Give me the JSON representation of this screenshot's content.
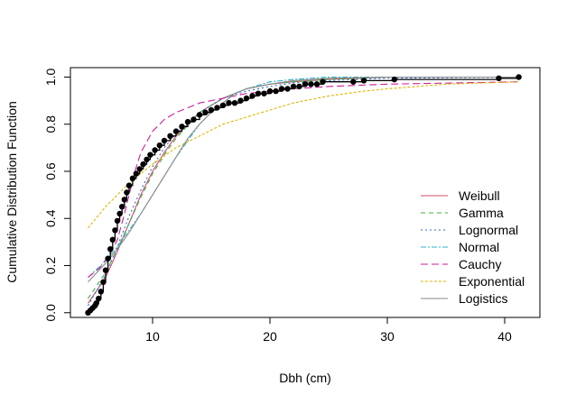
{
  "chart_data": {
    "type": "line",
    "title": "",
    "xlabel": "Dbh (cm)",
    "ylabel": "Cumulative Distribution Function",
    "xlim": [
      3,
      43
    ],
    "ylim": [
      -0.02,
      1.04
    ],
    "xticks": [
      10,
      20,
      30,
      40
    ],
    "yticks": [
      0.0,
      0.2,
      0.4,
      0.6,
      0.8,
      1.0
    ],
    "xtick_labels": [
      "10",
      "20",
      "30",
      "40"
    ],
    "ytick_labels": [
      "0.0",
      "0.2",
      "0.4",
      "0.6",
      "0.8",
      "1.0"
    ],
    "grid": false,
    "legend_position": "bottom-right",
    "empirical": {
      "x": [
        4.5,
        4.7,
        4.9,
        5.1,
        5.2,
        5.4,
        5.6,
        5.8,
        6.0,
        6.2,
        6.4,
        6.6,
        6.8,
        7.0,
        7.2,
        7.4,
        7.6,
        7.8,
        8.0,
        8.3,
        8.6,
        8.9,
        9.2,
        9.5,
        9.8,
        10.2,
        10.6,
        11.0,
        11.5,
        12.0,
        12.5,
        13.0,
        13.5,
        14.0,
        14.5,
        15.0,
        15.5,
        16.0,
        16.5,
        17.0,
        17.5,
        18.0,
        18.5,
        19.0,
        19.5,
        20.0,
        20.5,
        21.0,
        21.5,
        22.0,
        22.5,
        23.0,
        23.5,
        24.0,
        24.5,
        27.1,
        28.0,
        30.6,
        39.5,
        41.2
      ],
      "y": [
        0.0,
        0.01,
        0.02,
        0.03,
        0.04,
        0.06,
        0.09,
        0.13,
        0.18,
        0.23,
        0.27,
        0.31,
        0.35,
        0.39,
        0.42,
        0.45,
        0.48,
        0.51,
        0.54,
        0.57,
        0.59,
        0.61,
        0.63,
        0.65,
        0.67,
        0.69,
        0.71,
        0.73,
        0.75,
        0.77,
        0.79,
        0.81,
        0.82,
        0.84,
        0.85,
        0.86,
        0.87,
        0.88,
        0.89,
        0.89,
        0.9,
        0.91,
        0.92,
        0.93,
        0.93,
        0.94,
        0.94,
        0.95,
        0.95,
        0.96,
        0.96,
        0.97,
        0.97,
        0.97,
        0.98,
        0.98,
        0.985,
        0.99,
        0.995,
        1.0
      ]
    },
    "series": [
      {
        "name": "Weibull",
        "color": "#d64a6b",
        "dash": "",
        "x": [
          4.5,
          6,
          7,
          8,
          9,
          10,
          11,
          12,
          14,
          16,
          18,
          20,
          22,
          25,
          30,
          41.2
        ],
        "y": [
          0.04,
          0.15,
          0.26,
          0.38,
          0.5,
          0.6,
          0.68,
          0.75,
          0.85,
          0.91,
          0.95,
          0.97,
          0.98,
          0.99,
          1.0,
          1.0
        ]
      },
      {
        "name": "Gamma",
        "color": "#3fad3f",
        "dash": "5,4",
        "x": [
          4.5,
          6,
          7,
          8,
          9,
          10,
          11,
          12,
          14,
          16,
          18,
          20,
          22,
          25,
          30,
          41.2
        ],
        "y": [
          0.06,
          0.17,
          0.27,
          0.38,
          0.49,
          0.59,
          0.67,
          0.74,
          0.85,
          0.91,
          0.95,
          0.97,
          0.98,
          0.99,
          1.0,
          1.0
        ]
      },
      {
        "name": "Lognormal",
        "color": "#2b6fd6",
        "dash": "2,3",
        "x": [
          4.5,
          6,
          7,
          8,
          9,
          10,
          11,
          12,
          14,
          16,
          18,
          20,
          22,
          25,
          30,
          41.2
        ],
        "y": [
          0.03,
          0.16,
          0.28,
          0.41,
          0.52,
          0.62,
          0.7,
          0.76,
          0.85,
          0.91,
          0.94,
          0.96,
          0.975,
          0.985,
          0.995,
          1.0
        ]
      },
      {
        "name": "Normal",
        "color": "#2cb4c9",
        "dash": "6,2,2,2",
        "x": [
          4.5,
          6,
          7,
          8,
          9,
          10,
          11,
          12,
          13,
          14,
          15,
          16,
          17,
          18,
          20,
          22,
          25,
          30,
          41.2
        ],
        "y": [
          0.15,
          0.22,
          0.28,
          0.35,
          0.42,
          0.5,
          0.58,
          0.66,
          0.73,
          0.8,
          0.85,
          0.89,
          0.93,
          0.95,
          0.98,
          0.99,
          1.0,
          1.0,
          1.0
        ]
      },
      {
        "name": "Cauchy",
        "color": "#cc1f9a",
        "dash": "8,4",
        "x": [
          4.5,
          5.5,
          6.5,
          7,
          7.5,
          8,
          8.5,
          9,
          10,
          11,
          12,
          14,
          16,
          18,
          20,
          22,
          25,
          30,
          41.2
        ],
        "y": [
          0.15,
          0.19,
          0.26,
          0.31,
          0.4,
          0.5,
          0.6,
          0.68,
          0.77,
          0.82,
          0.85,
          0.89,
          0.91,
          0.93,
          0.94,
          0.95,
          0.96,
          0.97,
          0.98
        ]
      },
      {
        "name": "Exponential",
        "color": "#e0b400",
        "dash": "3,2",
        "x": [
          4.5,
          6,
          8,
          10,
          12,
          14,
          16,
          18,
          20,
          22,
          25,
          28,
          30,
          35,
          41.2
        ],
        "y": [
          0.36,
          0.45,
          0.55,
          0.63,
          0.7,
          0.75,
          0.8,
          0.83,
          0.86,
          0.89,
          0.92,
          0.94,
          0.95,
          0.97,
          0.98
        ]
      },
      {
        "name": "Logistics",
        "color": "#8a8a8a",
        "dash": "",
        "x": [
          4.5,
          6,
          7,
          8,
          9,
          10,
          11,
          12,
          13,
          14,
          15,
          16,
          17,
          18,
          20,
          22,
          25,
          30,
          41.2
        ],
        "y": [
          0.13,
          0.21,
          0.27,
          0.34,
          0.42,
          0.5,
          0.58,
          0.66,
          0.74,
          0.8,
          0.85,
          0.89,
          0.93,
          0.95,
          0.97,
          0.985,
          0.995,
          1.0,
          1.0
        ]
      }
    ]
  }
}
